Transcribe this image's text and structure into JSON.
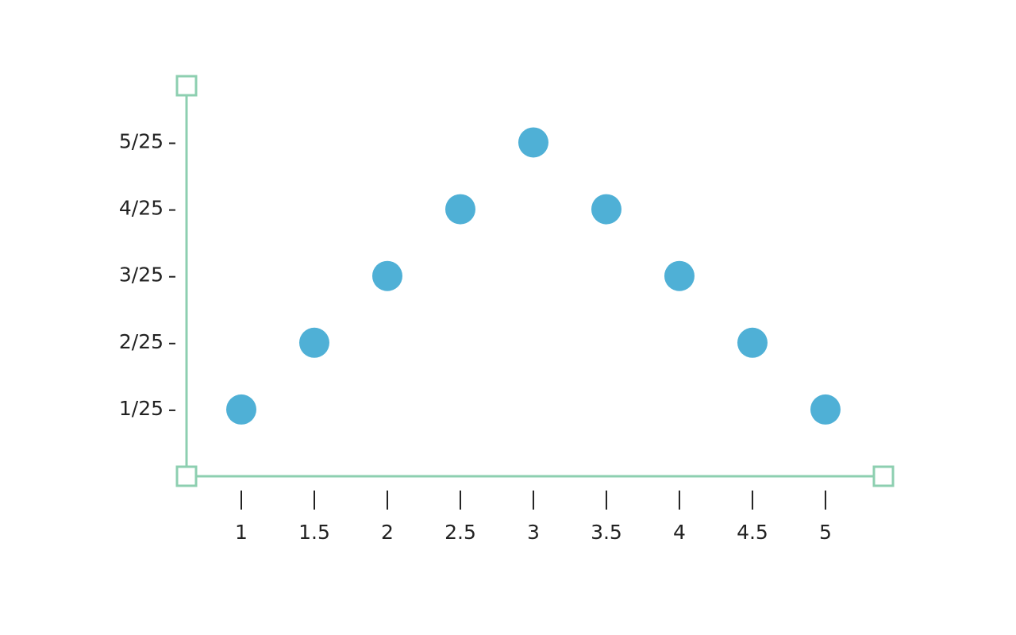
{
  "chart_data": {
    "type": "scatter",
    "x": [
      1,
      1.5,
      2,
      2.5,
      3,
      3.5,
      4,
      4.5,
      5
    ],
    "values": [
      0.04,
      0.08,
      0.12,
      0.16,
      0.2,
      0.16,
      0.12,
      0.08,
      0.04
    ],
    "color": "#4fb0d6",
    "axis_color": "#8dcfb0",
    "xlim": [
      0.625,
      5.397
    ],
    "ylim": [
      0,
      0.234
    ],
    "xticks": [
      1,
      1.5,
      2,
      2.5,
      3,
      3.5,
      4,
      4.5,
      5
    ],
    "yticks": [
      {
        "value": 0.04,
        "label": "1/25"
      },
      {
        "value": 0.08,
        "label": "2/25"
      },
      {
        "value": 0.12,
        "label": "3/25"
      },
      {
        "value": 0.16,
        "label": "4/25"
      },
      {
        "value": 0.2,
        "label": "5/25"
      }
    ]
  }
}
